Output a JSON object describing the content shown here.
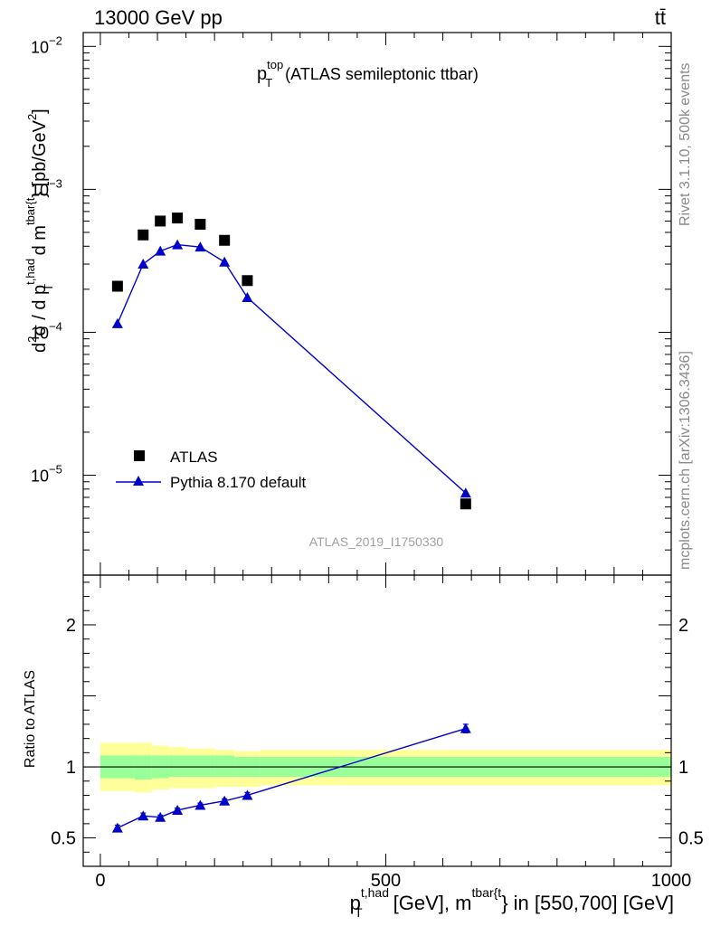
{
  "header": {
    "energy_label": "13000 GeV pp",
    "process_label": "tt̄"
  },
  "side_labels": {
    "rivet": "Rivet 3.1.10,  500k events",
    "mcplots": "mcplots.cern.ch [arXiv:1306.3436]"
  },
  "watermark": "ATLAS_2019_I1750330",
  "colors": {
    "data": "#000000",
    "mc": "#0000cc",
    "band_inner": "#99ff99",
    "band_outer": "#ffff99",
    "side_text": "#8a8a8a"
  },
  "chart_data": [
    {
      "type": "scatter",
      "title": "(ATLAS semileptonic ttbar)",
      "title_var": {
        "base": "p",
        "sub": "T",
        "sup": "top"
      },
      "ylabel": "d²σ / d p_T^{t,had} d m^{tbar{t}} [pb/GeV²]",
      "ylabel_parts": {
        "a": "d",
        "a_sup": "2",
        "b": "σ / d p",
        "b_sup": "t,had",
        "b_sub": "T",
        "c": " d m",
        "c_sup": "tbar{t",
        "d": "} [pb/GeV",
        "d_sup": "2",
        "e": "]"
      },
      "yscale": "log",
      "ylim": [
        2e-06,
        0.0125
      ],
      "yticks": [
        {
          "value": 1e-05,
          "base": "10",
          "exp": "−5"
        },
        {
          "value": 0.0001,
          "base": "10",
          "exp": "−4"
        },
        {
          "value": 0.001,
          "base": "10",
          "exp": "−3"
        },
        {
          "value": 0.01,
          "base": "10",
          "exp": "−2"
        }
      ],
      "xlim": [
        -30,
        1000
      ],
      "legend_position": "lower-left",
      "series": [
        {
          "name": "ATLAS",
          "marker": "square",
          "x": [
            30,
            75,
            105,
            135,
            175,
            217.5,
            257.5,
            640
          ],
          "y": [
            0.00021,
            0.00048,
            0.0006,
            0.00063,
            0.00057,
            0.00044,
            0.00023,
            6.3e-06
          ]
        },
        {
          "name": "Pythia 8.170 default",
          "marker": "triangle",
          "x": [
            30,
            75,
            105,
            135,
            175,
            217.5,
            257.5,
            640
          ],
          "y": [
            0.000115,
            0.0003,
            0.00037,
            0.00041,
            0.000395,
            0.00031,
            0.000175,
            7.5e-06
          ]
        }
      ]
    },
    {
      "type": "line",
      "ylabel": "Ratio to ATLAS",
      "ylim": [
        0.3,
        2.35
      ],
      "yticks": [
        0.5,
        1,
        2
      ],
      "ytick_labels": [
        "0.5",
        "1",
        "2"
      ],
      "xlim": [
        -30,
        1000
      ],
      "xticks": [
        0,
        500,
        1000
      ],
      "xtick_labels": [
        "0",
        "500",
        "1000"
      ],
      "xlabel": "p_T^{t,had} [GeV], m^{tbar{t}} in [550,700] [GeV]",
      "xlabel_parts": {
        "a": "p",
        "a_sup": "t,had",
        "a_sub": "T",
        "b": " [GeV], m",
        "b_sup": "tbar{t",
        "c": "} in [550,700] [GeV]"
      },
      "reference_line": 1,
      "bands": {
        "edges": [
          0,
          60,
          90,
          120,
          150,
          200,
          235,
          280,
          1000
        ],
        "inner_lo": [
          0.92,
          0.91,
          0.92,
          0.93,
          0.93,
          0.93,
          0.93,
          0.93
        ],
        "inner_hi": [
          1.08,
          1.08,
          1.08,
          1.08,
          1.08,
          1.08,
          1.07,
          1.07
        ],
        "outer_lo": [
          0.83,
          0.82,
          0.84,
          0.85,
          0.85,
          0.86,
          0.86,
          0.87
        ],
        "outer_hi": [
          1.17,
          1.17,
          1.15,
          1.14,
          1.13,
          1.12,
          1.11,
          1.12
        ]
      },
      "series": [
        {
          "name": "Pythia 8.170 default",
          "x": [
            30,
            75,
            105,
            135,
            175,
            217.5,
            257.5,
            640
          ],
          "y": [
            0.57,
            0.655,
            0.645,
            0.695,
            0.73,
            0.76,
            0.8,
            1.27
          ],
          "err": [
            0.02,
            0.02,
            0.015,
            0.015,
            0.015,
            0.015,
            0.02,
            0.03
          ]
        }
      ]
    }
  ]
}
